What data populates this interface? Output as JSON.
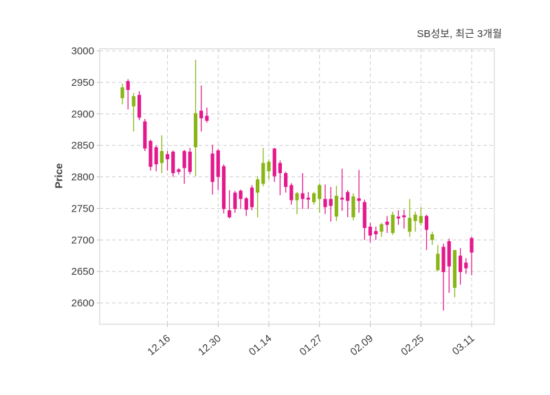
{
  "figure": {
    "title": "SB성보, 최근 3개월",
    "ylabel": "Price"
  },
  "chart_data": {
    "type": "candlestick",
    "title": "SB성보, 최근 3개월",
    "xlabel": "",
    "ylabel": "Price",
    "grid": true,
    "legend": false,
    "ylim": [
      2566,
      3003
    ],
    "y_ticks": [
      2600,
      2650,
      2700,
      2750,
      2800,
      2850,
      2900,
      2950,
      3000
    ],
    "x_ticks": [
      {
        "index": 8,
        "label": "12.16"
      },
      {
        "index": 17,
        "label": "12.30"
      },
      {
        "index": 26,
        "label": "01.14"
      },
      {
        "index": 35,
        "label": "01.27"
      },
      {
        "index": 44,
        "label": "02.09"
      },
      {
        "index": 53,
        "label": "02.25"
      },
      {
        "index": 62,
        "label": "03.11"
      }
    ],
    "colors": {
      "up": "#8ab516",
      "down": "#e3188c"
    },
    "candles": [
      [
        2925,
        2948,
        2915,
        2942
      ],
      [
        2952,
        2955,
        2907,
        2938
      ],
      [
        2912,
        2933,
        2872,
        2928
      ],
      [
        2930,
        2936,
        2890,
        2894
      ],
      [
        2888,
        2892,
        2841,
        2845
      ],
      [
        2857,
        2859,
        2810,
        2816
      ],
      [
        2847,
        2850,
        2809,
        2820
      ],
      [
        2822,
        2866,
        2806,
        2841
      ],
      [
        2836,
        2841,
        2810,
        2828
      ],
      [
        2840,
        2842,
        2800,
        2806
      ],
      [
        2812,
        2814,
        2804,
        2808
      ],
      [
        2841,
        2843,
        2789,
        2814
      ],
      [
        2840,
        2846,
        2804,
        2808
      ],
      [
        2847,
        2986,
        2801,
        2901
      ],
      [
        2905,
        2945,
        2872,
        2893
      ],
      [
        2897,
        2910,
        2886,
        2889
      ],
      [
        2837,
        2851,
        2772,
        2792
      ],
      [
        2842,
        2844,
        2779,
        2800
      ],
      [
        2817,
        2820,
        2742,
        2749
      ],
      [
        2747,
        2779,
        2734,
        2736
      ],
      [
        2775,
        2778,
        2743,
        2749
      ],
      [
        2778,
        2780,
        2749,
        2765
      ],
      [
        2766,
        2768,
        2738,
        2748
      ],
      [
        2783,
        2787,
        2747,
        2752
      ],
      [
        2775,
        2801,
        2736,
        2796
      ],
      [
        2789,
        2846,
        2785,
        2822
      ],
      [
        2809,
        2828,
        2796,
        2824
      ],
      [
        2845,
        2846,
        2792,
        2801
      ],
      [
        2822,
        2826,
        2771,
        2806
      ],
      [
        2806,
        2808,
        2775,
        2784
      ],
      [
        2787,
        2790,
        2756,
        2763
      ],
      [
        2763,
        2776,
        2741,
        2774
      ],
      [
        2774,
        2806,
        2749,
        2765
      ],
      [
        2767,
        2776,
        2749,
        2764
      ],
      [
        2760,
        2776,
        2756,
        2774
      ],
      [
        2765,
        2790,
        2743,
        2787
      ],
      [
        2765,
        2788,
        2741,
        2752
      ],
      [
        2765,
        2784,
        2729,
        2754
      ],
      [
        2737,
        2786,
        2730,
        2770
      ],
      [
        2767,
        2813,
        2746,
        2764
      ],
      [
        2776,
        2779,
        2736,
        2762
      ],
      [
        2736,
        2774,
        2731,
        2769
      ],
      [
        2766,
        2811,
        2743,
        2762
      ],
      [
        2760,
        2764,
        2700,
        2719
      ],
      [
        2721,
        2727,
        2696,
        2707
      ],
      [
        2714,
        2721,
        2700,
        2709
      ],
      [
        2713,
        2727,
        2705,
        2725
      ],
      [
        2729,
        2738,
        2711,
        2724
      ],
      [
        2711,
        2745,
        2708,
        2740
      ],
      [
        2737,
        2747,
        2724,
        2734
      ],
      [
        2739,
        2748,
        2718,
        2736
      ],
      [
        2713,
        2765,
        2705,
        2735
      ],
      [
        2730,
        2745,
        2713,
        2740
      ],
      [
        2727,
        2752,
        2723,
        2738
      ],
      [
        2738,
        2740,
        2684,
        2716
      ],
      [
        2700,
        2713,
        2692,
        2709
      ],
      [
        2652,
        2692,
        2650,
        2678
      ],
      [
        2689,
        2694,
        2588,
        2649
      ],
      [
        2698,
        2702,
        2616,
        2658
      ],
      [
        2624,
        2684,
        2609,
        2684
      ],
      [
        2675,
        2687,
        2629,
        2649
      ],
      [
        2664,
        2671,
        2646,
        2655
      ],
      [
        2703,
        2705,
        2644,
        2680
      ]
    ]
  }
}
